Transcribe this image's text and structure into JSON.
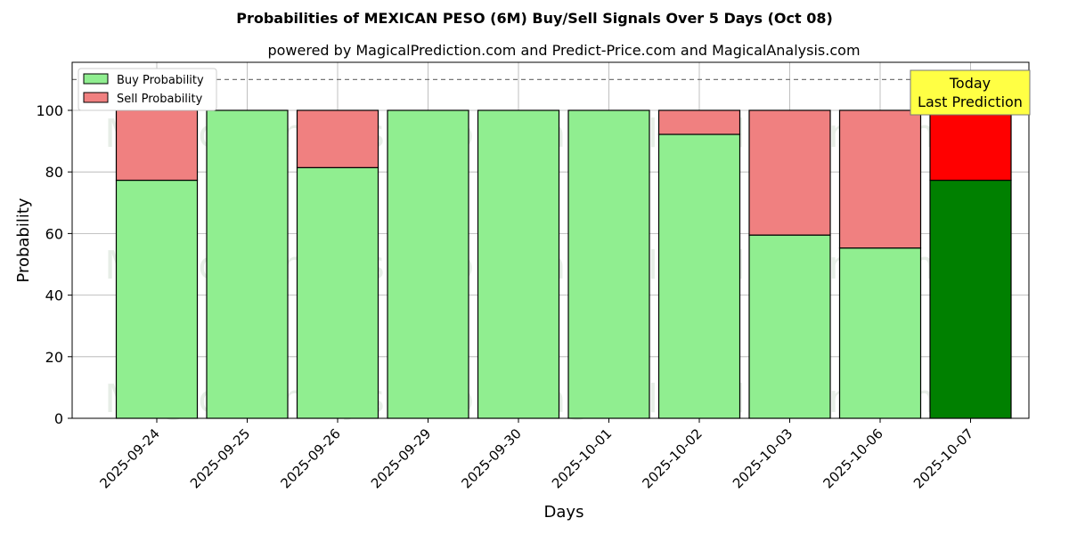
{
  "chart_data": {
    "type": "bar",
    "stacked": true,
    "title": "Probabilities of MEXICAN PESO (6M) Buy/Sell Signals Over 5 Days (Oct 08)",
    "subtitle": "powered by MagicalPrediction.com and Predict-Price.com and MagicalAnalysis.com",
    "xlabel": "Days",
    "ylabel": "Probability",
    "ylim": [
      0,
      115.6
    ],
    "yticks": [
      0,
      20,
      40,
      60,
      80,
      100
    ],
    "grid": true,
    "legend_position": "top-left",
    "categories": [
      "2025-09-24",
      "2025-09-25",
      "2025-09-26",
      "2025-09-29",
      "2025-09-30",
      "2025-10-01",
      "2025-10-02",
      "2025-10-03",
      "2025-10-06",
      "2025-10-07"
    ],
    "series": [
      {
        "name": "Buy Probability",
        "color": "#90ee90",
        "values": [
          77.3,
          100,
          81.4,
          100,
          100,
          100,
          92.2,
          59.5,
          55.3,
          77.3
        ]
      },
      {
        "name": "Sell Probability",
        "color": "#f08080",
        "values": [
          22.7,
          0,
          18.6,
          0,
          0,
          0,
          7.8,
          40.5,
          44.7,
          22.7
        ]
      }
    ],
    "highlight": {
      "index": 9,
      "buy_color": "#008000",
      "sell_color": "#ff0000"
    },
    "reference_line": 110,
    "annotation": {
      "line1": "Today",
      "line2": "Last Prediction"
    },
    "watermarks": [
      "MagicalAnalysis.com",
      "MagicalPrediction.com"
    ]
  }
}
